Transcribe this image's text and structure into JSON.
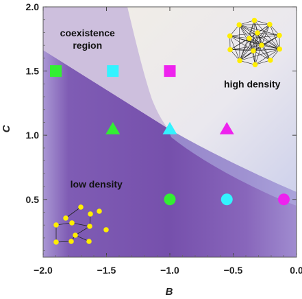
{
  "chart_data": {
    "type": "scatter",
    "xlabel": "B",
    "ylabel": "C",
    "xlim": [
      -2.0,
      0.0
    ],
    "ylim": [
      0.05,
      2.0
    ],
    "x_ticks": [
      -2.0,
      -1.5,
      -1.0,
      -0.5,
      0.0
    ],
    "x_tick_labels": [
      "−2.0",
      "−1.5",
      "−1.0",
      "−0.5",
      "0.0"
    ],
    "y_ticks": [
      0.5,
      1.0,
      1.5,
      2.0
    ],
    "y_tick_labels": [
      "0.5",
      "1.0",
      "1.5",
      "2.0"
    ],
    "grid": false,
    "regions": [
      {
        "name": "coexistence region",
        "label_lines": [
          "coexistence",
          "region"
        ],
        "label_at": [
          -1.65,
          1.75
        ],
        "color": "#cdbfdd"
      },
      {
        "name": "high density",
        "label_lines": [
          "high density"
        ],
        "label_at": [
          -0.35,
          1.4
        ],
        "color": "#f1ede6"
      },
      {
        "name": "low density",
        "label_lines": [
          "low density"
        ],
        "label_at": [
          -1.58,
          0.62
        ],
        "color": "#7b54ae"
      }
    ],
    "points": [
      {
        "x": -1.9,
        "y": 1.5,
        "shape": "square",
        "color": "#33ee33"
      },
      {
        "x": -1.45,
        "y": 1.5,
        "shape": "square",
        "color": "#33f3ff"
      },
      {
        "x": -1.0,
        "y": 1.5,
        "shape": "square",
        "color": "#ee22ee"
      },
      {
        "x": -1.45,
        "y": 1.05,
        "shape": "triangle",
        "color": "#33ee33"
      },
      {
        "x": -1.0,
        "y": 1.05,
        "shape": "triangle",
        "color": "#33f3ff"
      },
      {
        "x": -0.55,
        "y": 1.05,
        "shape": "triangle",
        "color": "#ee22ee"
      },
      {
        "x": -1.0,
        "y": 0.5,
        "shape": "circle",
        "color": "#33ee33"
      },
      {
        "x": -0.55,
        "y": 0.5,
        "shape": "circle",
        "color": "#33f3ff"
      },
      {
        "x": -0.1,
        "y": 0.5,
        "shape": "circle",
        "color": "#ee22ee"
      }
    ],
    "insets": [
      {
        "name": "sparse-network-illustration",
        "region": "low density",
        "node_color": "#ffee00"
      },
      {
        "name": "dense-network-illustration",
        "region": "high density",
        "node_color": "#ffee00"
      }
    ]
  }
}
